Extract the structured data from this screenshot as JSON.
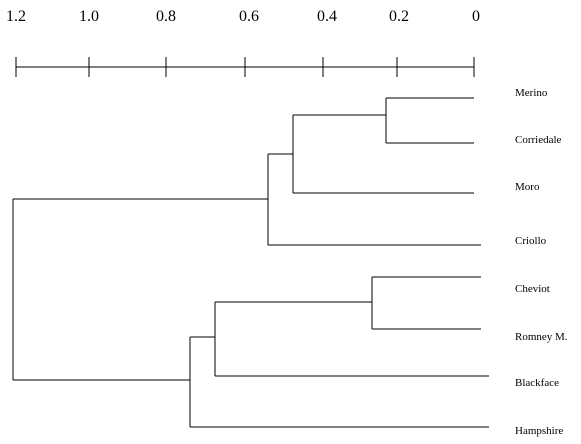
{
  "dendrogram": {
    "scale_ticks": [
      "1.2",
      "1.0",
      "0.8",
      "0.6",
      "0.4",
      "0.2",
      "0"
    ],
    "leaves": [
      "Merino",
      "Corriedale",
      "Moro",
      "Criollo",
      "Cheviot",
      "Romney M.",
      "Blackface",
      "Hampshire"
    ],
    "merges": [
      {
        "left": "Merino",
        "right": "Corriedale",
        "height": 0.23
      },
      {
        "left": "Merino+Corriedale",
        "right": "Moro",
        "height": 0.47
      },
      {
        "left": "Merino+Corriedale+Moro",
        "right": "Criollo",
        "height": 0.53
      },
      {
        "left": "Cheviot",
        "right": "Romney M.",
        "height": 0.27
      },
      {
        "left": "Cheviot+Romney M.",
        "right": "Blackface",
        "height": 0.67
      },
      {
        "left": "Cheviot+Romney M.+Blackface",
        "right": "Hampshire",
        "height": 0.74
      },
      {
        "left": "Merino+Corriedale+Moro+Criollo",
        "right": "Cheviot+Romney M.+Blackface+Hampshire",
        "height": 1.18
      }
    ],
    "line_color": "#000000"
  }
}
